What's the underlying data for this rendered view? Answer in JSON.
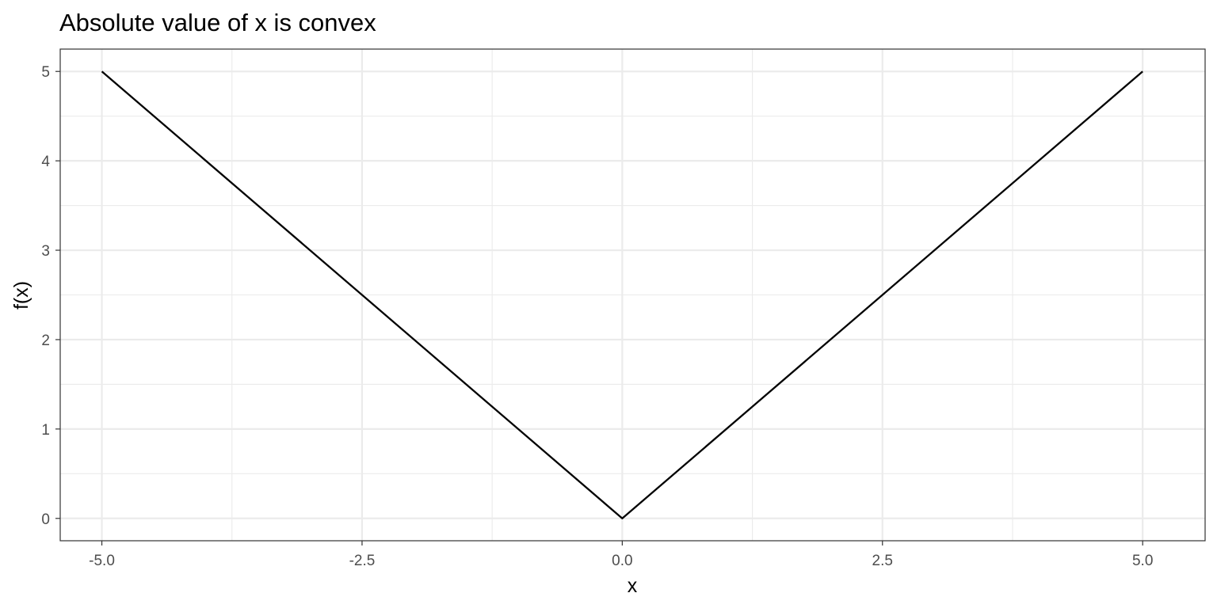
{
  "chart_data": {
    "type": "line",
    "title": "Absolute value of x is convex",
    "xlabel": "x",
    "ylabel": "f(x)",
    "xlim": [
      -5.4,
      5.6
    ],
    "ylim": [
      -0.25,
      5.25
    ],
    "x_ticks": [
      -5.0,
      -2.5,
      0.0,
      2.5,
      5.0
    ],
    "x_tick_labels": [
      "-5.0",
      "-2.5",
      "0.0",
      "2.5",
      "5.0"
    ],
    "y_ticks": [
      0,
      1,
      2,
      3,
      4,
      5
    ],
    "y_tick_labels": [
      "0",
      "1",
      "2",
      "3",
      "4",
      "5"
    ],
    "x_minor_gridlines": [
      -3.75,
      -1.25,
      1.25,
      3.75
    ],
    "y_minor_gridlines": [
      0.5,
      1.5,
      2.5,
      3.5,
      4.5
    ],
    "grid": true,
    "series": [
      {
        "x": [
          -5.0,
          0.0,
          5.0
        ],
        "y": [
          5,
          0,
          5
        ],
        "color": "#000000"
      }
    ]
  }
}
